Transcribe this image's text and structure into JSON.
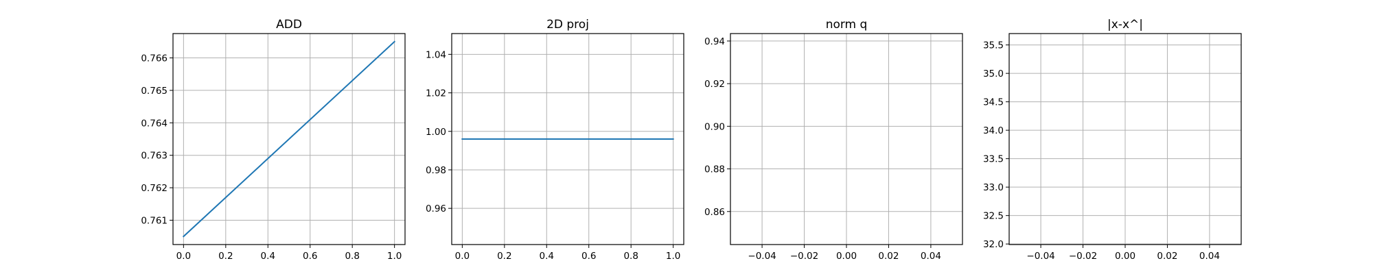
{
  "chart_data": [
    {
      "type": "line",
      "title": "ADD",
      "xlim": [
        -0.05,
        1.05
      ],
      "ylim": [
        0.76025,
        0.76675
      ],
      "xticks": [
        0.0,
        0.2,
        0.4,
        0.6,
        0.8,
        1.0
      ],
      "xtick_labels": [
        "0.0",
        "0.2",
        "0.4",
        "0.6",
        "0.8",
        "1.0"
      ],
      "yticks": [
        0.761,
        0.762,
        0.763,
        0.764,
        0.765,
        0.766
      ],
      "ytick_labels": [
        "0.761",
        "0.762",
        "0.763",
        "0.764",
        "0.765",
        "0.766"
      ],
      "grid": true,
      "series": [
        {
          "x": [
            0,
            1
          ],
          "y": [
            0.7605,
            0.7665
          ],
          "color": "#1f77b4"
        }
      ]
    },
    {
      "type": "line",
      "title": "2D proj",
      "xlim": [
        -0.05,
        1.05
      ],
      "ylim": [
        0.9412,
        1.0508
      ],
      "xticks": [
        0.0,
        0.2,
        0.4,
        0.6,
        0.8,
        1.0
      ],
      "xtick_labels": [
        "0.0",
        "0.2",
        "0.4",
        "0.6",
        "0.8",
        "1.0"
      ],
      "yticks": [
        0.96,
        0.98,
        1.0,
        1.02,
        1.04
      ],
      "ytick_labels": [
        "0.96",
        "0.98",
        "1.00",
        "1.02",
        "1.04"
      ],
      "grid": true,
      "series": [
        {
          "x": [
            0,
            1
          ],
          "y": [
            0.996,
            0.996
          ],
          "color": "#1f77b4"
        }
      ]
    },
    {
      "type": "line",
      "title": "norm q",
      "xlim": [
        -0.055,
        0.055
      ],
      "ylim": [
        0.8445,
        0.9435
      ],
      "xticks": [
        -0.04,
        -0.02,
        0.0,
        0.02,
        0.04
      ],
      "xtick_labels": [
        "−0.04",
        "−0.02",
        "0.00",
        "0.02",
        "0.04"
      ],
      "yticks": [
        0.86,
        0.88,
        0.9,
        0.92,
        0.94
      ],
      "ytick_labels": [
        "0.86",
        "0.88",
        "0.90",
        "0.92",
        "0.94"
      ],
      "grid": true,
      "series": []
    },
    {
      "type": "line",
      "title": "|x-x^|",
      "xlim": [
        -0.055,
        0.055
      ],
      "ylim": [
        31.99,
        35.7
      ],
      "xticks": [
        -0.04,
        -0.02,
        0.0,
        0.02,
        0.04
      ],
      "xtick_labels": [
        "−0.04",
        "−0.02",
        "0.00",
        "0.02",
        "0.04"
      ],
      "yticks": [
        32.0,
        32.5,
        33.0,
        33.5,
        34.0,
        34.5,
        35.0,
        35.5
      ],
      "ytick_labels": [
        "32.0",
        "32.5",
        "33.0",
        "33.5",
        "34.0",
        "34.5",
        "35.0",
        "35.5"
      ],
      "grid": true,
      "series": []
    }
  ]
}
